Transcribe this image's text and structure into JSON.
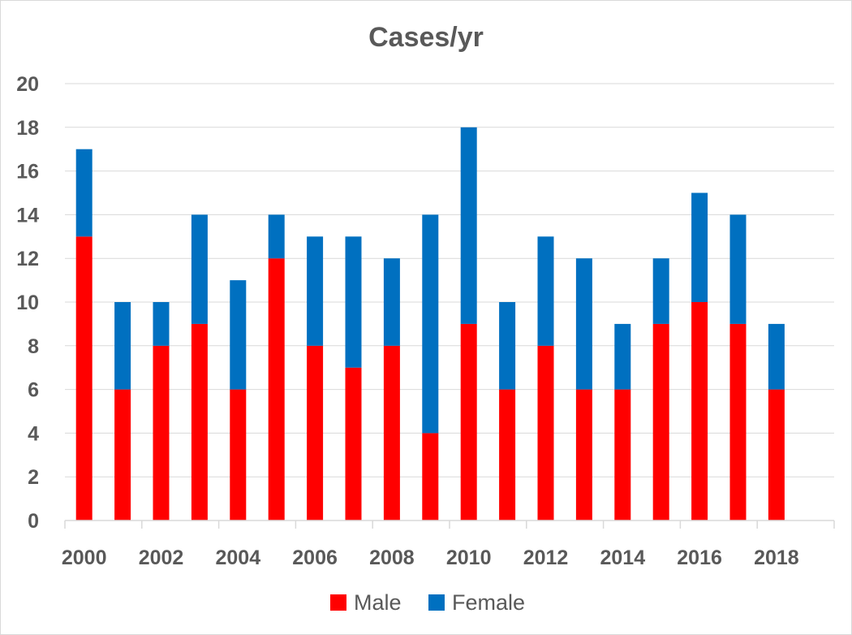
{
  "chart_data": {
    "type": "bar",
    "stacked": true,
    "title": "Cases/yr",
    "xlabel": "",
    "ylabel": "",
    "ylim": [
      0,
      20
    ],
    "yticks": [
      "0",
      "2",
      "4",
      "6",
      "8",
      "10",
      "12",
      "14",
      "16",
      "18",
      "20"
    ],
    "xtick_labels": [
      "2000",
      "2002",
      "2004",
      "2006",
      "2008",
      "2010",
      "2012",
      "2014",
      "2016",
      "2018"
    ],
    "categories": [
      "2000",
      "2001",
      "2002",
      "2003",
      "2004",
      "2005",
      "2006",
      "2007",
      "2008",
      "2009",
      "2010",
      "2011",
      "2012",
      "2013",
      "2014",
      "2015",
      "2016",
      "2017",
      "2018"
    ],
    "series": [
      {
        "name": "Male",
        "color": "#ff0000",
        "values": [
          13,
          6,
          8,
          9,
          6,
          12,
          8,
          7,
          8,
          4,
          9,
          6,
          8,
          6,
          6,
          9,
          10,
          9,
          6
        ]
      },
      {
        "name": "Female",
        "color": "#0070c0",
        "values": [
          4,
          4,
          2,
          5,
          5,
          2,
          5,
          6,
          4,
          10,
          9,
          4,
          5,
          6,
          3,
          3,
          5,
          5,
          3
        ]
      }
    ],
    "grid": true,
    "legend_position": "bottom"
  }
}
